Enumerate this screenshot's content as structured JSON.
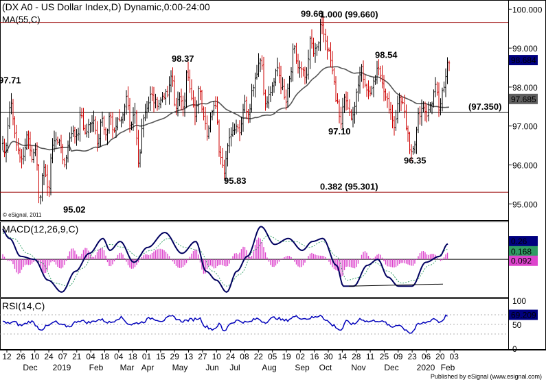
{
  "header": {
    "title": "(DX A0 - US Dollar Index,D) Dynamic,0:00-24:00",
    "ma_label": "MA(55,C)",
    "macd_label": "MACD(12,26,9,C)",
    "rsi_label": "RSI(14,C)",
    "copyright": "© eSignal, 2011",
    "footer": "Published by eSignal (www.esignal.com)"
  },
  "colors": {
    "up_bar": "#000000",
    "down_bar": "#cc0000",
    "ma_line": "#555555",
    "macd_line": "#00005f",
    "signal_line": "#3aa36a",
    "histogram": "#dd44cc",
    "rsi_line": "#0000bb",
    "level_line": "#990000",
    "price_tag_bg": "#00007f",
    "ma_tag_bg": "#5f5f5f",
    "signal_tag_bg": "#2f9b63",
    "hist_tag_bg": "#dd44cc"
  },
  "chart_data": [
    {
      "type": "candlestick",
      "title": "(DX A0 - US Dollar Index,D) Dynamic,0:00-24:00",
      "ylim": [
        94.6,
        100.2
      ],
      "yticks": [
        "100.000",
        "99.000",
        "98.000",
        "97.000",
        "96.000",
        "95.000"
      ],
      "xticks": [
        "12",
        "26",
        "10",
        "24",
        "07",
        "21",
        "04",
        "18",
        "04",
        "18",
        "01",
        "15",
        "29",
        "13",
        "27",
        "10",
        "24",
        "08",
        "22",
        "05",
        "19",
        "02",
        "16",
        "30",
        "14",
        "28",
        "11",
        "25",
        "09",
        "23",
        "06",
        "20",
        "03"
      ],
      "month_labels": [
        "Dec",
        "2019",
        "Feb",
        "Mar",
        "Apr",
        "May",
        "Jun",
        "Jul",
        "Aug",
        "Sep",
        "Oct",
        "Nov",
        "Dec",
        "2020",
        "Feb"
      ],
      "swing_points": [
        {
          "label": "97.71",
          "value": 97.71
        },
        {
          "label": "95.02",
          "value": 95.02
        },
        {
          "label": "98.37",
          "value": 98.37
        },
        {
          "label": "95.83",
          "value": 95.83
        },
        {
          "label": "99.66",
          "value": 99.66
        },
        {
          "label": "97.10",
          "value": 97.1
        },
        {
          "label": "98.54",
          "value": 98.54
        },
        {
          "label": "96.35",
          "value": 96.35
        }
      ],
      "levels": [
        {
          "label": "1.000 (99.660)",
          "value": 99.66
        },
        {
          "label": "(97.350)",
          "value": 97.35
        },
        {
          "label": "0.382 (95.301)",
          "value": 95.3
        }
      ],
      "last_price": "98.684",
      "ma_value": "97.685",
      "key_points": [
        [
          0,
          97.3
        ],
        [
          6,
          96.3
        ],
        [
          16,
          97.6
        ],
        [
          24,
          96.5
        ],
        [
          32,
          96.1
        ],
        [
          40,
          96.8
        ],
        [
          46,
          96.2
        ],
        [
          52,
          96.4
        ],
        [
          58,
          95.05
        ],
        [
          64,
          96.0
        ],
        [
          70,
          95.3
        ],
        [
          76,
          96.5
        ],
        [
          82,
          96.7
        ],
        [
          88,
          96.5
        ],
        [
          94,
          96.0
        ],
        [
          100,
          96.6
        ],
        [
          106,
          96.9
        ],
        [
          112,
          96.7
        ],
        [
          118,
          97.3
        ],
        [
          124,
          96.8
        ],
        [
          130,
          97.0
        ],
        [
          136,
          97.2
        ],
        [
          142,
          96.6
        ],
        [
          148,
          97.2
        ],
        [
          154,
          96.7
        ],
        [
          160,
          97.3
        ],
        [
          166,
          96.8
        ],
        [
          172,
          97.2
        ],
        [
          178,
          97.2
        ],
        [
          184,
          97.8
        ],
        [
          190,
          96.9
        ],
        [
          196,
          97.3
        ],
        [
          202,
          96.0
        ],
        [
          208,
          97.2
        ],
        [
          214,
          97.5
        ],
        [
          220,
          97.8
        ],
        [
          226,
          97.6
        ],
        [
          232,
          97.6
        ],
        [
          238,
          97.8
        ],
        [
          244,
          97.8
        ],
        [
          250,
          98.3
        ],
        [
          256,
          97.4
        ],
        [
          262,
          97.8
        ],
        [
          268,
          97.5
        ],
        [
          272,
          98.37
        ],
        [
          278,
          97.8
        ],
        [
          284,
          97.3
        ],
        [
          290,
          98.1
        ],
        [
          296,
          97.2
        ],
        [
          302,
          96.8
        ],
        [
          308,
          97.4
        ],
        [
          314,
          97.6
        ],
        [
          320,
          96.3
        ],
        [
          326,
          95.83
        ],
        [
          332,
          96.6
        ],
        [
          338,
          96.9
        ],
        [
          344,
          97.0
        ],
        [
          350,
          96.9
        ],
        [
          356,
          97.6
        ],
        [
          362,
          97.2
        ],
        [
          368,
          98.0
        ],
        [
          374,
          98.4
        ],
        [
          380,
          98.8
        ],
        [
          386,
          97.6
        ],
        [
          392,
          97.8
        ],
        [
          398,
          98.1
        ],
        [
          404,
          98.5
        ],
        [
          410,
          98.0
        ],
        [
          416,
          97.6
        ],
        [
          422,
          98.2
        ],
        [
          428,
          99.0
        ],
        [
          434,
          98.5
        ],
        [
          440,
          98.4
        ],
        [
          446,
          98.2
        ],
        [
          452,
          99.2
        ],
        [
          458,
          98.9
        ],
        [
          464,
          99.1
        ],
        [
          467,
          99.66
        ],
        [
          472,
          99.3
        ],
        [
          478,
          98.9
        ],
        [
          484,
          98.5
        ],
        [
          490,
          97.6
        ],
        [
          496,
          97.1
        ],
        [
          502,
          97.8
        ],
        [
          508,
          97.4
        ],
        [
          514,
          97.2
        ],
        [
          520,
          98.0
        ],
        [
          526,
          98.5
        ],
        [
          532,
          98.0
        ],
        [
          538,
          97.8
        ],
        [
          544,
          98.1
        ],
        [
          550,
          98.54
        ],
        [
          556,
          98.1
        ],
        [
          562,
          97.8
        ],
        [
          568,
          97.4
        ],
        [
          574,
          97.0
        ],
        [
          580,
          97.7
        ],
        [
          586,
          97.6
        ],
        [
          592,
          97.0
        ],
        [
          598,
          96.35
        ],
        [
          604,
          96.6
        ],
        [
          610,
          97.3
        ],
        [
          616,
          97.5
        ],
        [
          622,
          97.3
        ],
        [
          628,
          97.6
        ],
        [
          634,
          98.0
        ],
        [
          640,
          97.4
        ],
        [
          646,
          98.0
        ],
        [
          652,
          98.684
        ]
      ]
    },
    {
      "type": "line",
      "title": "MACD(12,26,9,C)",
      "ylim": [
        -0.62,
        0.6
      ],
      "yticks": [
        "0"
      ],
      "last_values": {
        "macd": "0.26",
        "signal": "0.168",
        "histogram": "0.092"
      },
      "macd_keys": [
        [
          0,
          0.55
        ],
        [
          14,
          0.35
        ],
        [
          30,
          0.05
        ],
        [
          50,
          0.0
        ],
        [
          70,
          -0.35
        ],
        [
          90,
          -0.55
        ],
        [
          110,
          -0.2
        ],
        [
          130,
          0.1
        ],
        [
          150,
          0.35
        ],
        [
          160,
          0.15
        ],
        [
          175,
          0.3
        ],
        [
          195,
          -0.05
        ],
        [
          215,
          0.2
        ],
        [
          240,
          0.45
        ],
        [
          265,
          0.1
        ],
        [
          285,
          0.3
        ],
        [
          300,
          -0.2
        ],
        [
          315,
          -0.35
        ],
        [
          330,
          -0.55
        ],
        [
          345,
          -0.2
        ],
        [
          360,
          0.05
        ],
        [
          380,
          0.55
        ],
        [
          400,
          0.25
        ],
        [
          420,
          0.35
        ],
        [
          440,
          0.15
        ],
        [
          455,
          0.3
        ],
        [
          470,
          0.35
        ],
        [
          490,
          -0.1
        ],
        [
          500,
          -0.45
        ],
        [
          515,
          -0.45
        ],
        [
          535,
          -0.1
        ],
        [
          550,
          0.0
        ],
        [
          565,
          -0.3
        ],
        [
          580,
          -0.45
        ],
        [
          600,
          -0.45
        ],
        [
          620,
          -0.05
        ],
        [
          640,
          0.05
        ],
        [
          652,
          0.26
        ]
      ],
      "signal_keys": [
        [
          0,
          0.45
        ],
        [
          20,
          0.35
        ],
        [
          40,
          0.1
        ],
        [
          60,
          -0.05
        ],
        [
          80,
          -0.4
        ],
        [
          100,
          -0.45
        ],
        [
          120,
          -0.15
        ],
        [
          140,
          0.15
        ],
        [
          160,
          0.25
        ],
        [
          180,
          0.2
        ],
        [
          200,
          0.05
        ],
        [
          220,
          0.15
        ],
        [
          245,
          0.35
        ],
        [
          270,
          0.2
        ],
        [
          290,
          0.15
        ],
        [
          310,
          -0.2
        ],
        [
          330,
          -0.45
        ],
        [
          350,
          -0.25
        ],
        [
          370,
          0.15
        ],
        [
          390,
          0.4
        ],
        [
          410,
          0.3
        ],
        [
          430,
          0.3
        ],
        [
          450,
          0.2
        ],
        [
          470,
          0.3
        ],
        [
          490,
          0.05
        ],
        [
          505,
          -0.35
        ],
        [
          525,
          -0.3
        ],
        [
          545,
          -0.05
        ],
        [
          565,
          -0.2
        ],
        [
          585,
          -0.4
        ],
        [
          605,
          -0.35
        ],
        [
          625,
          -0.1
        ],
        [
          652,
          0.168
        ]
      ],
      "support_line": [
        [
          508,
          -0.45
        ],
        [
          645,
          -0.45
        ]
      ]
    },
    {
      "type": "line",
      "title": "RSI(14,C)",
      "ylim": [
        0,
        100
      ],
      "yticks": [
        "100",
        "50",
        "0"
      ],
      "last_value": "69.209",
      "keys": [
        [
          0,
          60
        ],
        [
          10,
          52
        ],
        [
          20,
          55
        ],
        [
          30,
          48
        ],
        [
          45,
          56
        ],
        [
          60,
          40
        ],
        [
          70,
          47
        ],
        [
          80,
          55
        ],
        [
          90,
          48
        ],
        [
          100,
          46
        ],
        [
          115,
          58
        ],
        [
          130,
          54
        ],
        [
          145,
          60
        ],
        [
          160,
          54
        ],
        [
          175,
          64
        ],
        [
          190,
          50
        ],
        [
          205,
          54
        ],
        [
          220,
          63
        ],
        [
          235,
          58
        ],
        [
          250,
          66
        ],
        [
          265,
          57
        ],
        [
          280,
          60
        ],
        [
          290,
          63
        ],
        [
          300,
          45
        ],
        [
          310,
          40
        ],
        [
          320,
          50
        ],
        [
          326,
          35
        ],
        [
          335,
          52
        ],
        [
          345,
          58
        ],
        [
          360,
          54
        ],
        [
          375,
          62
        ],
        [
          385,
          55
        ],
        [
          400,
          64
        ],
        [
          415,
          58
        ],
        [
          430,
          66
        ],
        [
          445,
          62
        ],
        [
          460,
          65
        ],
        [
          467,
          70
        ],
        [
          475,
          58
        ],
        [
          485,
          48
        ],
        [
          496,
          38
        ],
        [
          505,
          56
        ],
        [
          515,
          50
        ],
        [
          525,
          62
        ],
        [
          535,
          56
        ],
        [
          550,
          58
        ],
        [
          560,
          54
        ],
        [
          570,
          44
        ],
        [
          580,
          50
        ],
        [
          590,
          40
        ],
        [
          598,
          32
        ],
        [
          610,
          50
        ],
        [
          620,
          54
        ],
        [
          632,
          62
        ],
        [
          640,
          55
        ],
        [
          652,
          69.2
        ]
      ]
    }
  ]
}
